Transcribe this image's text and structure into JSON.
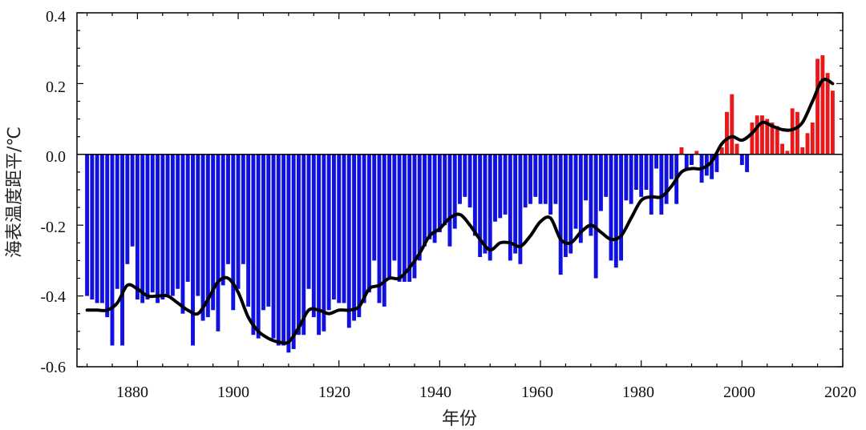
{
  "chart_data": {
    "type": "bar",
    "title": "",
    "xlabel": "年份",
    "ylabel": "海表温度距平/℃",
    "xlim": [
      1868,
      2020
    ],
    "ylim": [
      -0.6,
      0.4
    ],
    "x_ticks": [
      "1880",
      "1900",
      "1920",
      "1940",
      "1960",
      "1980",
      "2000",
      "2020"
    ],
    "y_ticks": [
      "0.4",
      "0.2",
      "0.0",
      "-0.2",
      "-0.4",
      "-0.6"
    ],
    "colors": {
      "positive": "#e8191b",
      "negative": "#1010e0",
      "smooth": "#000000",
      "frame": "#000000"
    },
    "grid": false,
    "bars": {
      "x": [
        1870,
        1871,
        1872,
        1873,
        1874,
        1875,
        1876,
        1877,
        1878,
        1879,
        1880,
        1881,
        1882,
        1883,
        1884,
        1885,
        1886,
        1887,
        1888,
        1889,
        1890,
        1891,
        1892,
        1893,
        1894,
        1895,
        1896,
        1897,
        1898,
        1899,
        1900,
        1901,
        1902,
        1903,
        1904,
        1905,
        1906,
        1907,
        1908,
        1909,
        1910,
        1911,
        1912,
        1913,
        1914,
        1915,
        1916,
        1917,
        1918,
        1919,
        1920,
        1921,
        1922,
        1923,
        1924,
        1925,
        1926,
        1927,
        1928,
        1929,
        1930,
        1931,
        1932,
        1933,
        1934,
        1935,
        1936,
        1937,
        1938,
        1939,
        1940,
        1941,
        1942,
        1943,
        1944,
        1945,
        1946,
        1947,
        1948,
        1949,
        1950,
        1951,
        1952,
        1953,
        1954,
        1955,
        1956,
        1957,
        1958,
        1959,
        1960,
        1961,
        1962,
        1963,
        1964,
        1965,
        1966,
        1967,
        1968,
        1969,
        1970,
        1971,
        1972,
        1973,
        1974,
        1975,
        1976,
        1977,
        1978,
        1979,
        1980,
        1981,
        1982,
        1983,
        1984,
        1985,
        1986,
        1987,
        1988,
        1989,
        1990,
        1991,
        1992,
        1993,
        1994,
        1995,
        1996,
        1997,
        1998,
        1999,
        2000,
        2001,
        2002,
        2003,
        2004,
        2005,
        2006,
        2007,
        2008,
        2009,
        2010,
        2011,
        2012,
        2013,
        2014,
        2015,
        2016,
        2017,
        2018
      ],
      "values": [
        -0.4,
        -0.41,
        -0.42,
        -0.42,
        -0.46,
        -0.54,
        -0.38,
        -0.54,
        -0.31,
        -0.26,
        -0.41,
        -0.42,
        -0.41,
        -0.39,
        -0.42,
        -0.41,
        -0.4,
        -0.4,
        -0.38,
        -0.45,
        -0.36,
        -0.54,
        -0.4,
        -0.47,
        -0.46,
        -0.44,
        -0.5,
        -0.37,
        -0.31,
        -0.44,
        -0.38,
        -0.31,
        -0.43,
        -0.51,
        -0.52,
        -0.44,
        -0.43,
        -0.52,
        -0.54,
        -0.54,
        -0.56,
        -0.55,
        -0.51,
        -0.51,
        -0.38,
        -0.46,
        -0.51,
        -0.5,
        -0.44,
        -0.41,
        -0.42,
        -0.42,
        -0.49,
        -0.47,
        -0.46,
        -0.42,
        -0.39,
        -0.3,
        -0.42,
        -0.43,
        -0.35,
        -0.3,
        -0.36,
        -0.36,
        -0.36,
        -0.35,
        -0.3,
        -0.26,
        -0.24,
        -0.25,
        -0.22,
        -0.2,
        -0.26,
        -0.21,
        -0.14,
        -0.12,
        -0.15,
        -0.23,
        -0.29,
        -0.28,
        -0.3,
        -0.19,
        -0.18,
        -0.17,
        -0.3,
        -0.28,
        -0.31,
        -0.15,
        -0.14,
        -0.12,
        -0.14,
        -0.14,
        -0.17,
        -0.14,
        -0.34,
        -0.29,
        -0.28,
        -0.21,
        -0.25,
        -0.13,
        -0.23,
        -0.35,
        -0.16,
        -0.12,
        -0.3,
        -0.32,
        -0.3,
        -0.13,
        -0.14,
        -0.1,
        -0.12,
        -0.1,
        -0.17,
        -0.04,
        -0.17,
        -0.14,
        -0.07,
        -0.14,
        0.02,
        -0.04,
        -0.03,
        0.01,
        -0.08,
        -0.06,
        -0.07,
        -0.05,
        0.02,
        0.12,
        0.17,
        0.03,
        -0.03,
        -0.05,
        0.09,
        0.11,
        0.11,
        0.1,
        0.09,
        0.08,
        0.03,
        0.01,
        0.13,
        0.12,
        0.02,
        0.06,
        0.09,
        0.27,
        0.28,
        0.23,
        0.18
      ]
    },
    "smooth": {
      "x": [
        1870,
        1872,
        1874,
        1876,
        1878,
        1880,
        1882,
        1884,
        1886,
        1888,
        1890,
        1892,
        1894,
        1896,
        1898,
        1900,
        1902,
        1904,
        1906,
        1908,
        1910,
        1912,
        1914,
        1916,
        1918,
        1920,
        1922,
        1924,
        1926,
        1928,
        1930,
        1932,
        1934,
        1936,
        1938,
        1940,
        1942,
        1944,
        1946,
        1948,
        1950,
        1952,
        1954,
        1956,
        1958,
        1960,
        1962,
        1964,
        1966,
        1968,
        1970,
        1972,
        1974,
        1976,
        1978,
        1980,
        1982,
        1984,
        1986,
        1988,
        1990,
        1992,
        1994,
        1996,
        1998,
        2000,
        2002,
        2004,
        2006,
        2008,
        2010,
        2012,
        2014,
        2016,
        2018
      ],
      "values": [
        -0.44,
        -0.44,
        -0.44,
        -0.42,
        -0.37,
        -0.38,
        -0.4,
        -0.4,
        -0.4,
        -0.42,
        -0.44,
        -0.45,
        -0.41,
        -0.36,
        -0.35,
        -0.39,
        -0.46,
        -0.5,
        -0.52,
        -0.53,
        -0.53,
        -0.49,
        -0.44,
        -0.44,
        -0.45,
        -0.44,
        -0.44,
        -0.43,
        -0.38,
        -0.37,
        -0.35,
        -0.35,
        -0.32,
        -0.28,
        -0.23,
        -0.21,
        -0.18,
        -0.17,
        -0.2,
        -0.24,
        -0.27,
        -0.25,
        -0.25,
        -0.26,
        -0.23,
        -0.19,
        -0.18,
        -0.24,
        -0.25,
        -0.22,
        -0.2,
        -0.22,
        -0.24,
        -0.23,
        -0.18,
        -0.13,
        -0.12,
        -0.12,
        -0.09,
        -0.05,
        -0.04,
        -0.04,
        -0.02,
        0.03,
        0.05,
        0.04,
        0.06,
        0.09,
        0.08,
        0.07,
        0.07,
        0.09,
        0.15,
        0.21,
        0.2
      ]
    }
  }
}
